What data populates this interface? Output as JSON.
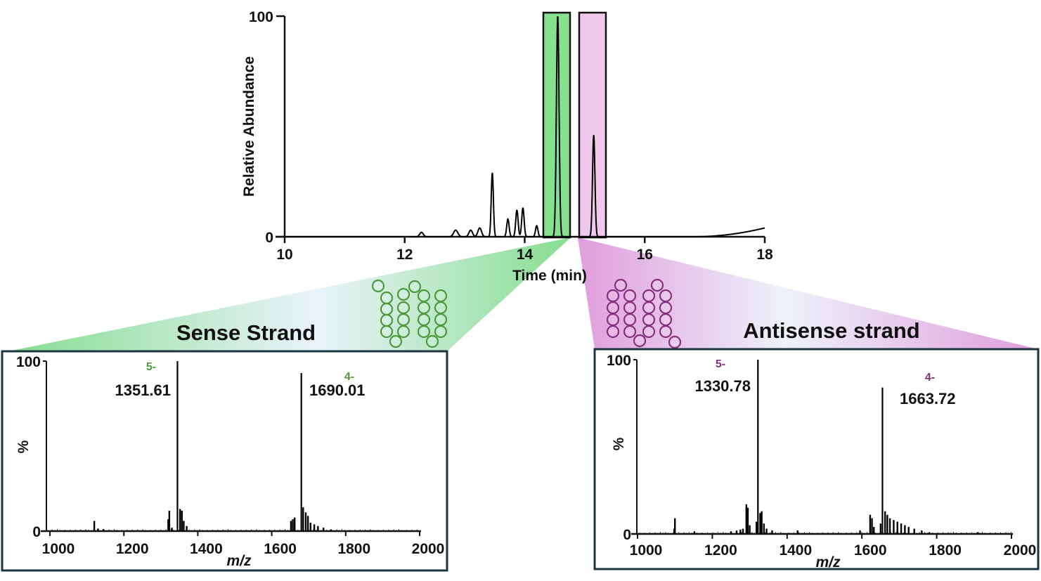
{
  "colors": {
    "sense": "#4c9a3c",
    "sense_fill": "#86e08f",
    "antisense": "#86307e",
    "antisense_fill": "#f0c8ec",
    "panel_border": "#1b3440",
    "trace": "#000000"
  },
  "chart_data": [
    {
      "id": "chromatogram",
      "type": "line",
      "title": "",
      "xlabel": "Time (min)",
      "ylabel": "Relative Abundance",
      "xlim": [
        10,
        18
      ],
      "ylim": [
        0,
        100
      ],
      "xticks": [
        "10",
        "12",
        "14",
        "16",
        "18"
      ],
      "yticks": [
        "0",
        "100"
      ],
      "peaks": [
        {
          "t": 12.28,
          "h": 2,
          "w": 0.03
        },
        {
          "t": 12.85,
          "h": 3,
          "w": 0.035
        },
        {
          "t": 13.1,
          "h": 3,
          "w": 0.03
        },
        {
          "t": 13.25,
          "h": 4,
          "w": 0.03
        },
        {
          "t": 13.46,
          "h": 29,
          "w": 0.018
        },
        {
          "t": 13.72,
          "h": 8,
          "w": 0.02
        },
        {
          "t": 13.87,
          "h": 12,
          "w": 0.02
        },
        {
          "t": 13.97,
          "h": 13,
          "w": 0.02
        },
        {
          "t": 14.2,
          "h": 5,
          "w": 0.02
        },
        {
          "t": 14.55,
          "h": 100,
          "w": 0.022
        },
        {
          "t": 15.15,
          "h": 46,
          "w": 0.02
        }
      ],
      "baseline_rise": {
        "start": 16.8,
        "end": 18,
        "end_value": 4
      },
      "highlight_regions": [
        {
          "name": "sense",
          "x_range": [
            14.35,
            14.8
          ]
        },
        {
          "name": "antisense",
          "x_range": [
            14.95,
            15.4
          ]
        }
      ]
    },
    {
      "id": "sense-spectrum",
      "type": "bar",
      "title": "Sense Strand",
      "xlabel": "m/z",
      "ylabel": "%",
      "xlim": [
        980,
        2000
      ],
      "ylim": [
        0,
        100
      ],
      "xticks": [
        "1000",
        "1200",
        "1400",
        "1600",
        "1800",
        "2000"
      ],
      "yticks": [
        "0",
        "100"
      ],
      "annotations": [
        {
          "mz": 1351.61,
          "label": "1351.61",
          "charge": "5-"
        },
        {
          "mz": 1690.01,
          "label": "1690.01",
          "charge": "4-"
        }
      ],
      "peaks": [
        {
          "mz": 1120,
          "h": 6
        },
        {
          "mz": 1130,
          "h": 1.5
        },
        {
          "mz": 1145,
          "h": 1.2
        },
        {
          "mz": 1320,
          "h": 7
        },
        {
          "mz": 1323,
          "h": 12
        },
        {
          "mz": 1330,
          "h": 2
        },
        {
          "mz": 1345,
          "h": 100
        },
        {
          "mz": 1352,
          "h": 13
        },
        {
          "mz": 1357,
          "h": 12
        },
        {
          "mz": 1362,
          "h": 6
        },
        {
          "mz": 1370,
          "h": 3
        },
        {
          "mz": 1652,
          "h": 6
        },
        {
          "mz": 1657,
          "h": 7
        },
        {
          "mz": 1662,
          "h": 8
        },
        {
          "mz": 1680,
          "h": 93
        },
        {
          "mz": 1685,
          "h": 14
        },
        {
          "mz": 1692,
          "h": 11
        },
        {
          "mz": 1698,
          "h": 9
        },
        {
          "mz": 1705,
          "h": 5
        },
        {
          "mz": 1715,
          "h": 4
        },
        {
          "mz": 1725,
          "h": 3
        },
        {
          "mz": 1740,
          "h": 2
        },
        {
          "mz": 1760,
          "h": 1
        }
      ]
    },
    {
      "id": "antisense-spectrum",
      "type": "bar",
      "title": "Antisense strand",
      "xlabel": "m/z",
      "ylabel": "%",
      "xlim": [
        1000,
        2000
      ],
      "ylim": [
        0,
        100
      ],
      "xticks": [
        "1000",
        "1200",
        "1400",
        "1600",
        "1800",
        "2000"
      ],
      "yticks": [
        "0",
        "100"
      ],
      "annotations": [
        {
          "mz": 1330.78,
          "label": "1330.78",
          "charge": "5-"
        },
        {
          "mz": 1663.72,
          "label": "1663.72",
          "charge": "4-"
        }
      ],
      "peaks": [
        {
          "mz": 1100,
          "h": 9
        },
        {
          "mz": 1098,
          "h": 3
        },
        {
          "mz": 1152,
          "h": 1.5
        },
        {
          "mz": 1250,
          "h": 1.5
        },
        {
          "mz": 1265,
          "h": 2
        },
        {
          "mz": 1275,
          "h": 2.5
        },
        {
          "mz": 1282,
          "h": 3
        },
        {
          "mz": 1291,
          "h": 17
        },
        {
          "mz": 1295,
          "h": 15
        },
        {
          "mz": 1300,
          "h": 5
        },
        {
          "mz": 1318,
          "h": 7
        },
        {
          "mz": 1322,
          "h": 100
        },
        {
          "mz": 1328,
          "h": 12
        },
        {
          "mz": 1332,
          "h": 13
        },
        {
          "mz": 1338,
          "h": 6
        },
        {
          "mz": 1345,
          "h": 3
        },
        {
          "mz": 1360,
          "h": 2
        },
        {
          "mz": 1428,
          "h": 2
        },
        {
          "mz": 1595,
          "h": 2
        },
        {
          "mz": 1622,
          "h": 11
        },
        {
          "mz": 1627,
          "h": 9
        },
        {
          "mz": 1632,
          "h": 4
        },
        {
          "mz": 1650,
          "h": 6
        },
        {
          "mz": 1655,
          "h": 84
        },
        {
          "mz": 1662,
          "h": 13
        },
        {
          "mz": 1668,
          "h": 11
        },
        {
          "mz": 1675,
          "h": 9
        },
        {
          "mz": 1685,
          "h": 8
        },
        {
          "mz": 1695,
          "h": 7
        },
        {
          "mz": 1705,
          "h": 6
        },
        {
          "mz": 1715,
          "h": 5
        },
        {
          "mz": 1725,
          "h": 4
        },
        {
          "mz": 1740,
          "h": 3
        },
        {
          "mz": 1760,
          "h": 2
        },
        {
          "mz": 1780,
          "h": 1
        },
        {
          "mz": 1910,
          "h": 1
        }
      ]
    }
  ]
}
